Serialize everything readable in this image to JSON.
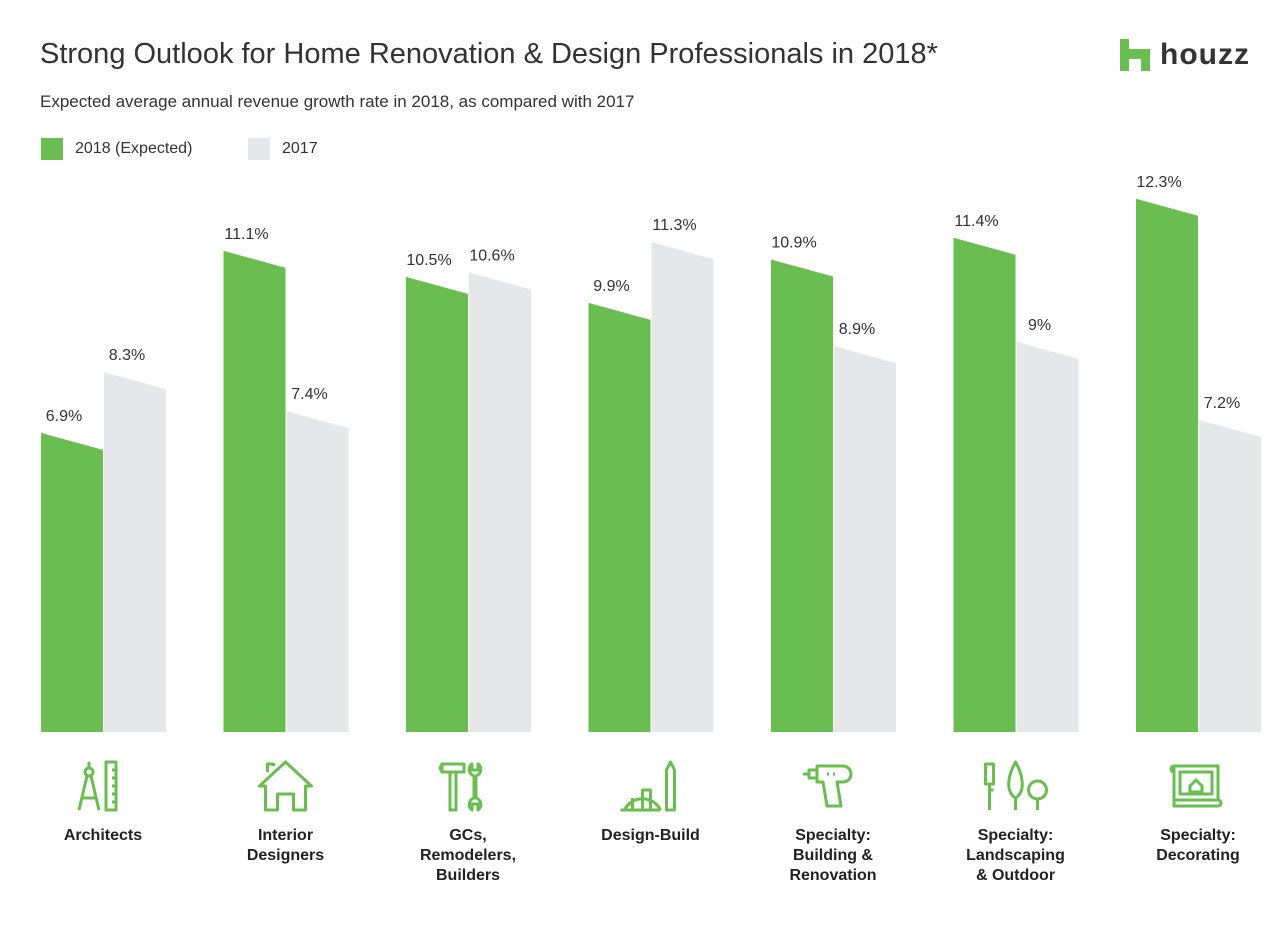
{
  "header": {
    "title": "Strong Outlook for Home Renovation & Design Professionals in 2018*",
    "subtitle": "Expected average annual revenue growth rate in 2018, as compared with 2017",
    "logo_text": "houzz"
  },
  "colors": {
    "green": "#6ABD50",
    "grey": "#E6E7E8",
    "text": "#333333"
  },
  "chart_data": {
    "type": "bar",
    "title": "Strong Outlook for Home Renovation & Design Professionals in 2018*",
    "subtitle": "Expected average annual revenue growth rate in 2018, as compared with 2017",
    "legend_position": "top-left",
    "grid": false,
    "ylim": [
      0,
      13
    ],
    "categories": [
      [
        "Architects"
      ],
      [
        "Interior",
        "Designers"
      ],
      [
        "GCs,",
        "Remodelers,",
        "Builders"
      ],
      [
        "Design-Build"
      ],
      [
        "Specialty:",
        "Building &",
        "Renovation"
      ],
      [
        "Specialty:",
        "Landscaping",
        "& Outdoor"
      ],
      [
        "Specialty:",
        "Decorating"
      ]
    ],
    "icons": [
      "compass-ruler-icon",
      "house-icon",
      "hammer-wrench-icon",
      "hardhat-pencil-icon",
      "drill-icon",
      "trees-icon",
      "framed-picture-icon"
    ],
    "series": [
      {
        "name": "2018 (Expected)",
        "color": "#6ABD50",
        "values": [
          6.9,
          11.1,
          10.5,
          9.9,
          10.9,
          11.4,
          12.3
        ],
        "labels": [
          "6.9%",
          "11.1%",
          "10.5%",
          "9.9%",
          "10.9%",
          "11.4%",
          "12.3%"
        ]
      },
      {
        "name": "2017",
        "color": "#E6E7E8",
        "values": [
          8.3,
          7.4,
          10.6,
          11.3,
          8.9,
          9,
          7.2
        ],
        "labels": [
          "8.3%",
          "7.4%",
          "10.6%",
          "11.3%",
          "8.9%",
          "9%",
          "7.2%"
        ]
      }
    ]
  }
}
